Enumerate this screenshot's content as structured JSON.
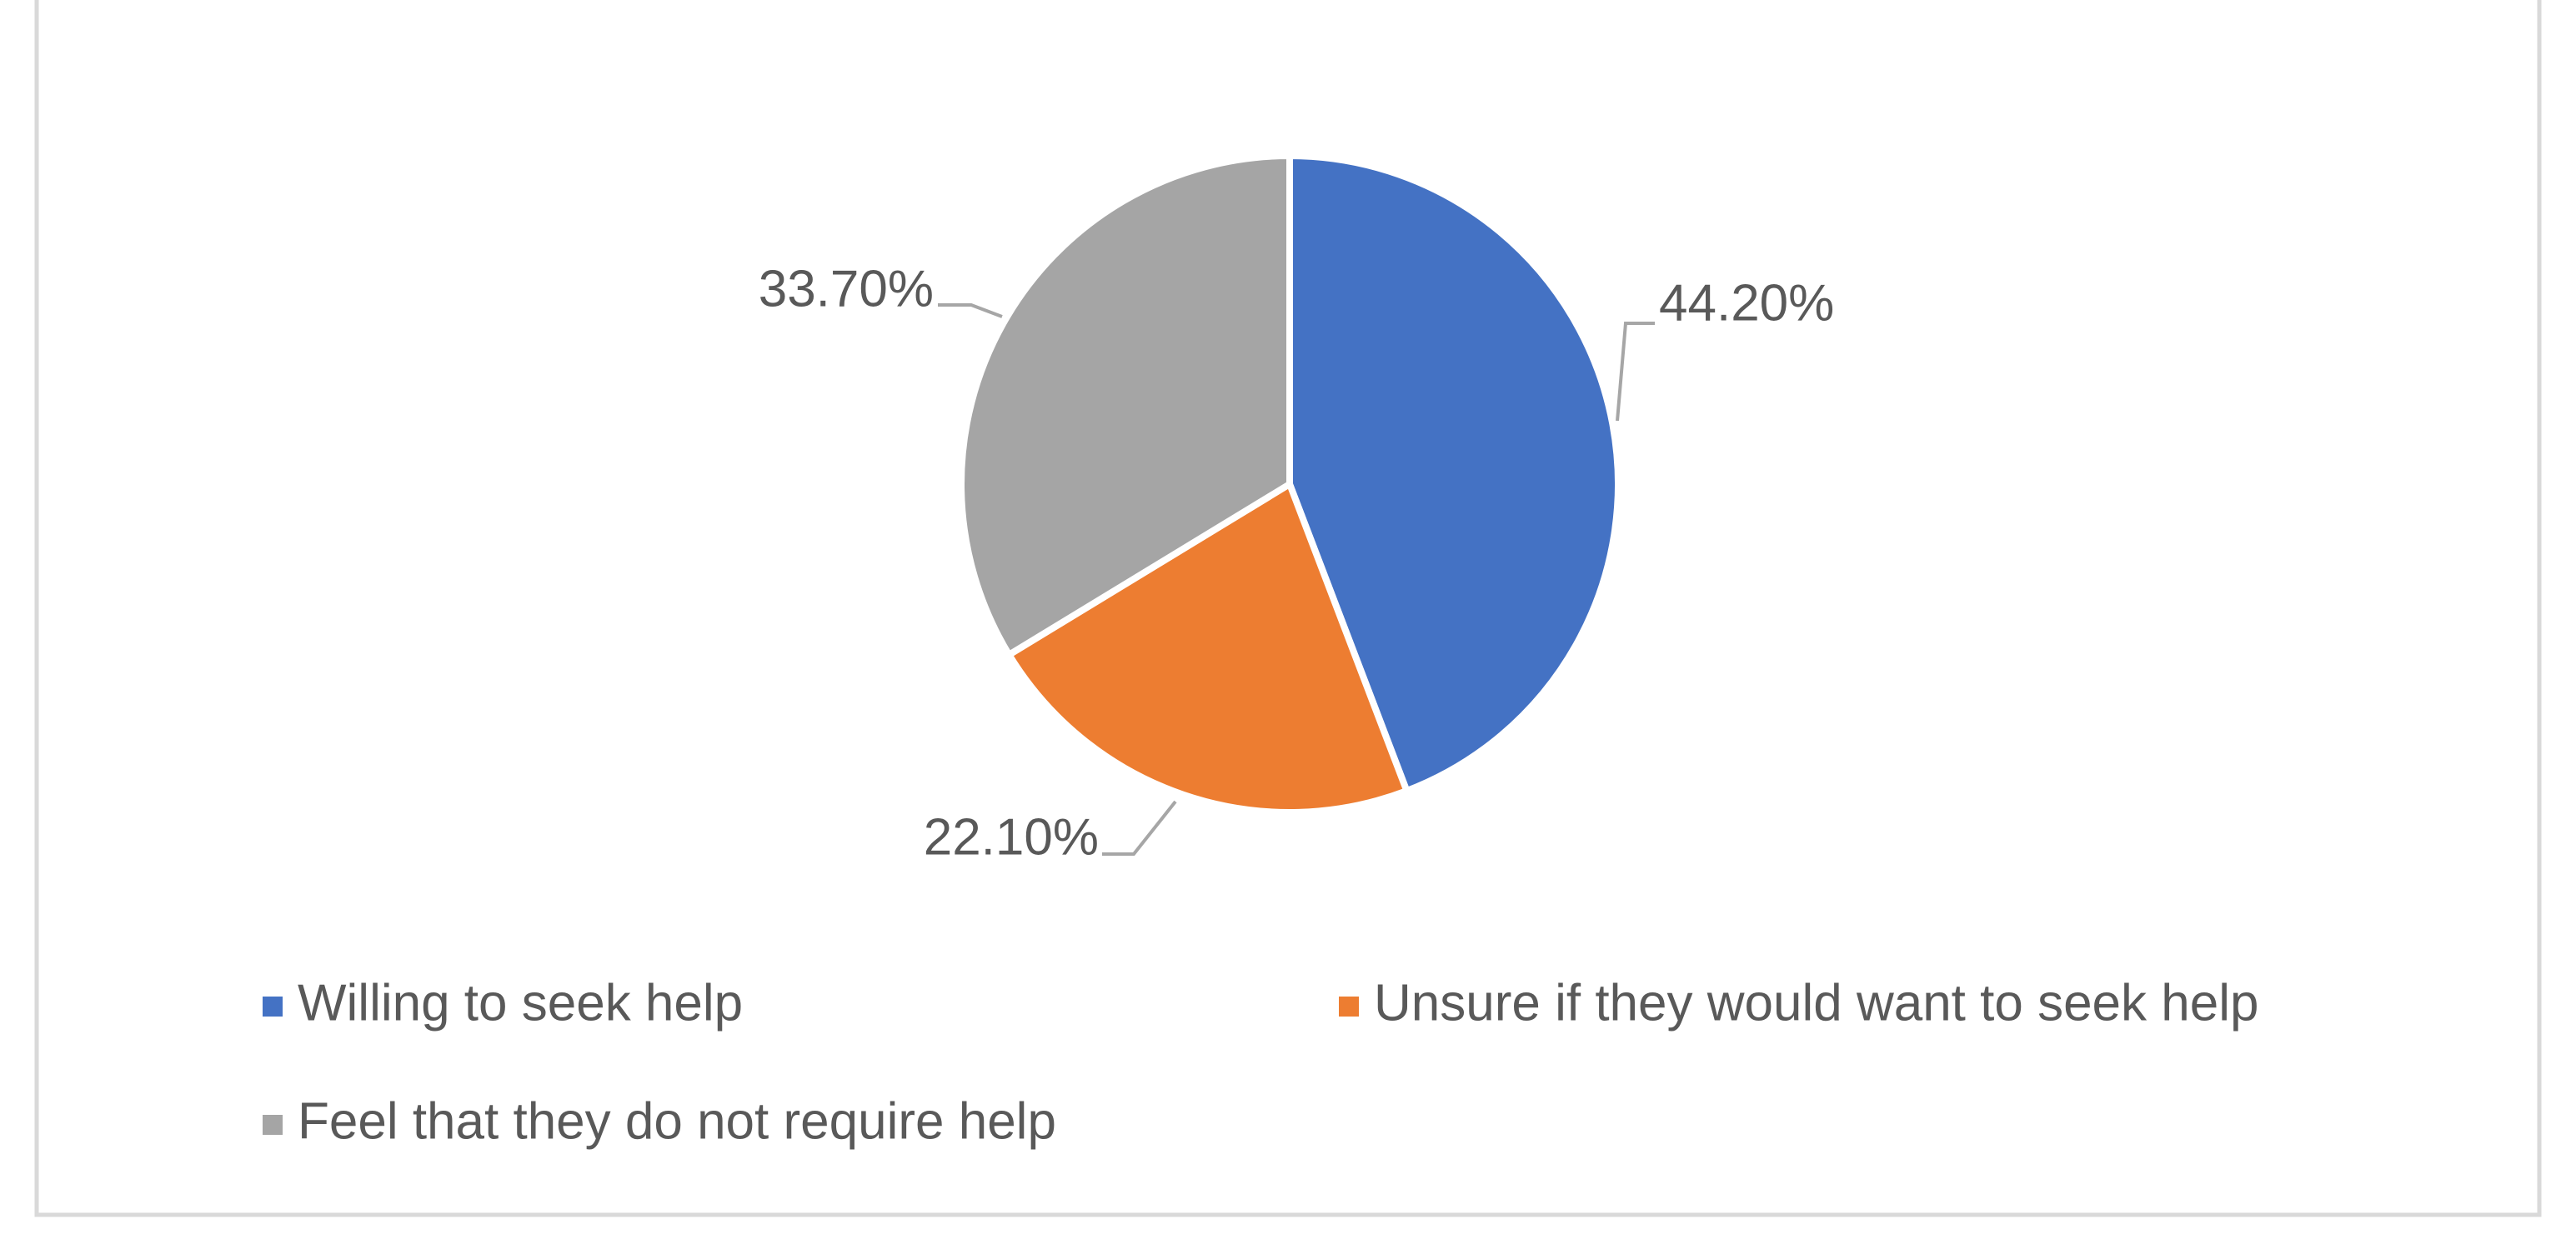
{
  "chart_data": {
    "type": "pie",
    "categories": [
      "Willing to seek help",
      "Unsure if they would want to seek help",
      "Feel that they do not require help"
    ],
    "values": [
      44.2,
      22.1,
      33.7
    ],
    "value_labels": [
      "44.20%",
      "22.10%",
      "33.70%"
    ],
    "colors": [
      "#4472c4",
      "#ed7d31",
      "#a5a5a5"
    ]
  }
}
